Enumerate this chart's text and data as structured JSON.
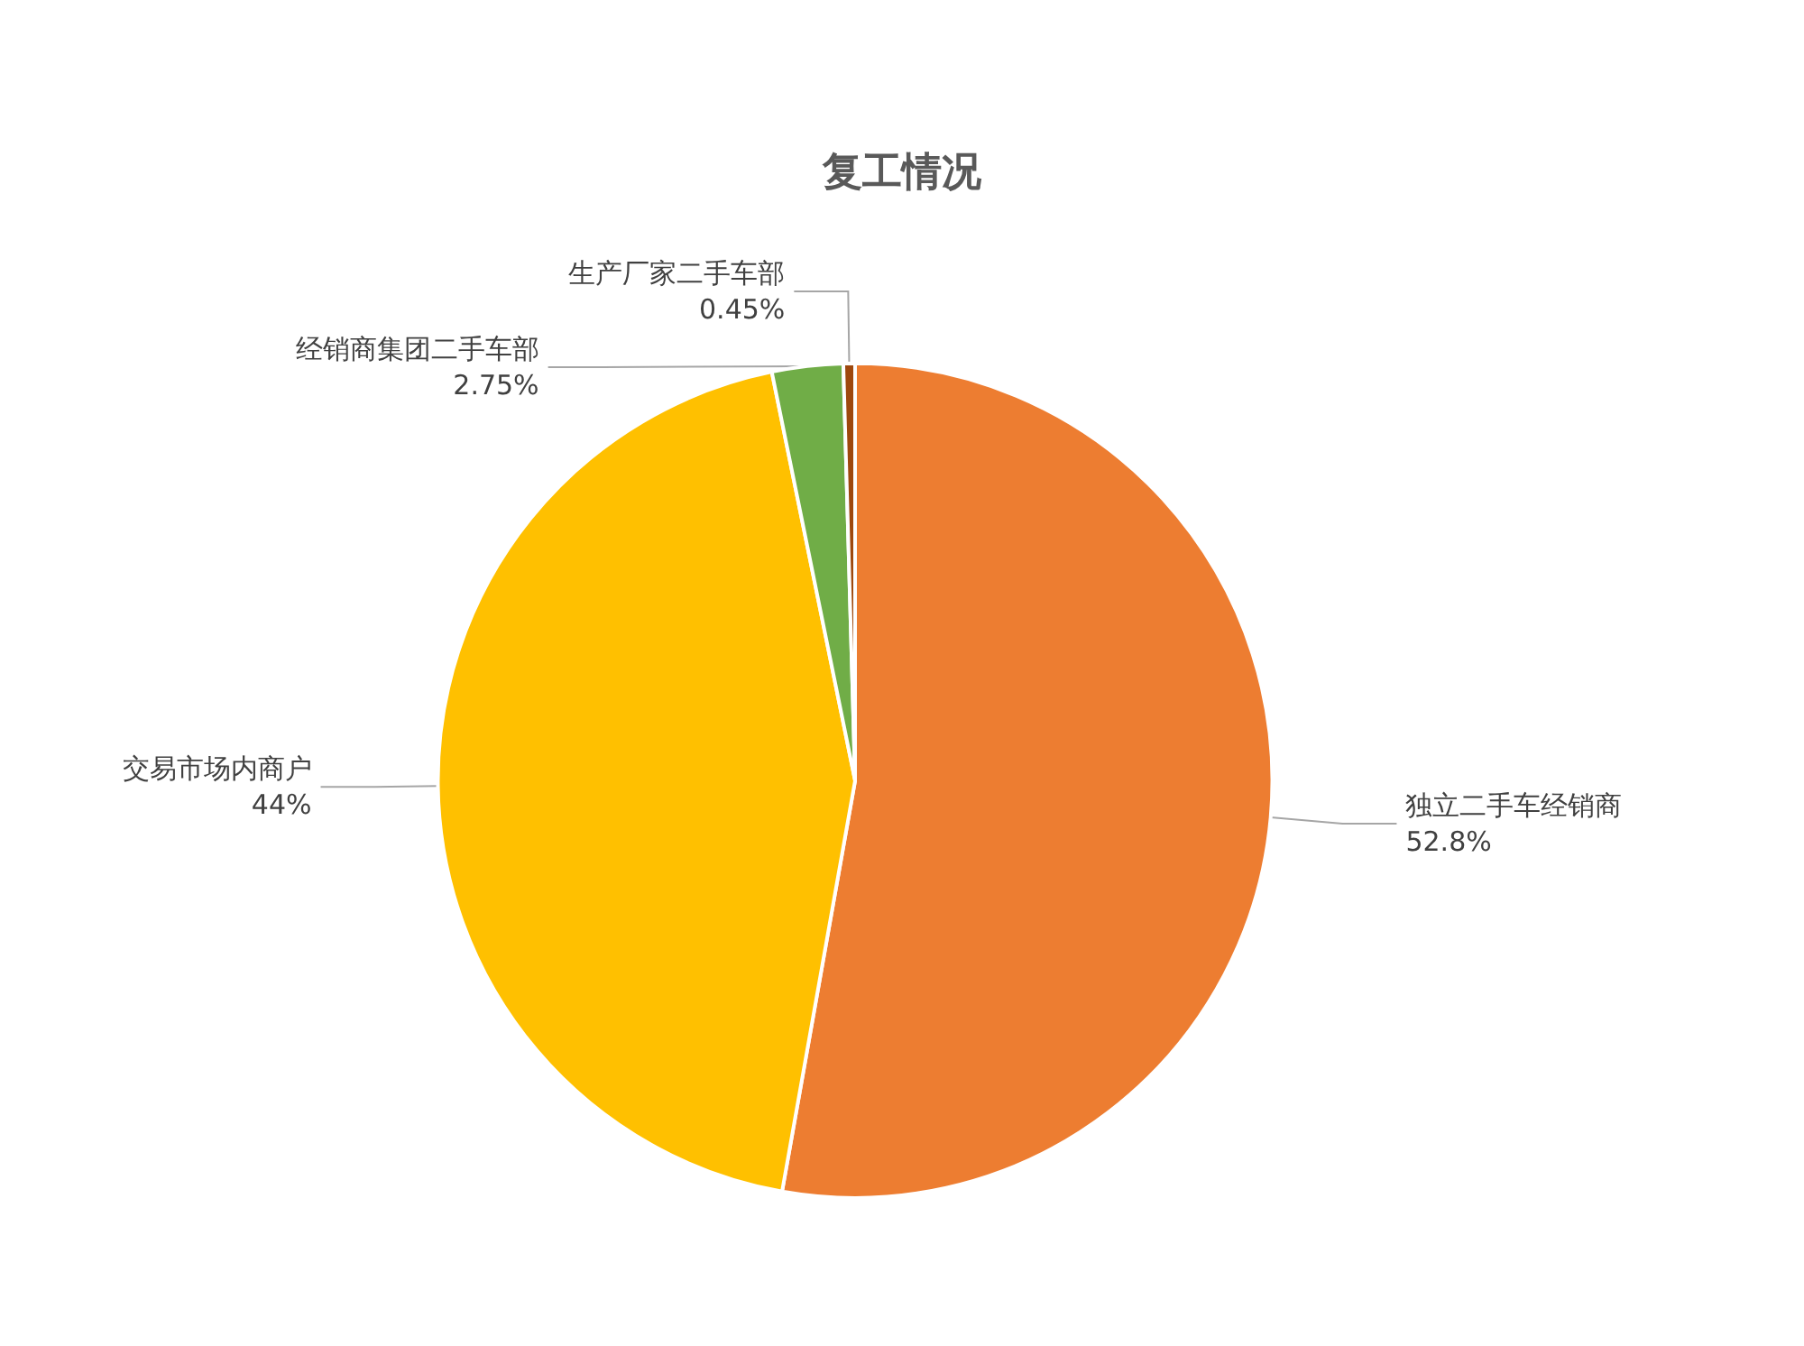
{
  "chart_data": {
    "type": "pie",
    "title": "复工情况",
    "categories": [
      "独立二手车经销商",
      "交易市场内商户",
      "经销商集团二手车部",
      "生产厂家二手车部"
    ],
    "values": [
      52.8,
      44,
      2.75,
      0.45
    ],
    "value_labels": [
      "52.8%",
      "44%",
      "2.75%",
      "0.45%"
    ],
    "colors": [
      "#ed7d31",
      "#ffc000",
      "#70ad47",
      "#9e480e"
    ],
    "legend": false
  }
}
